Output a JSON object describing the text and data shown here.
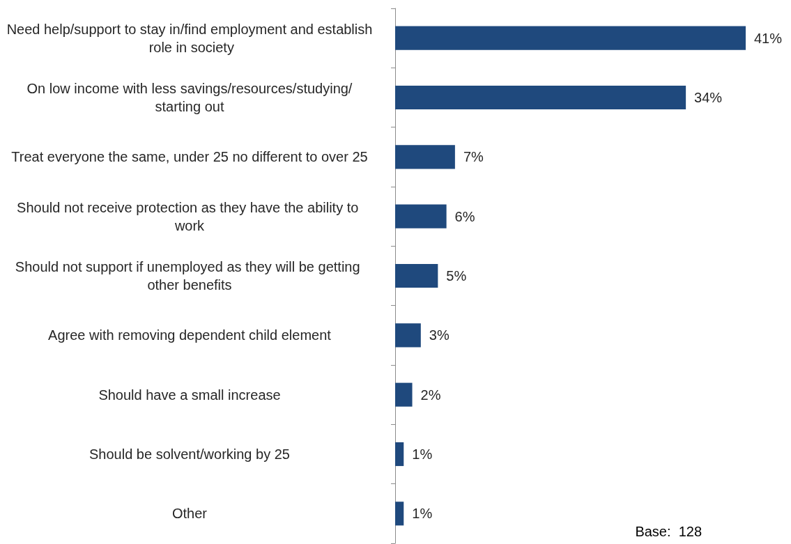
{
  "chart_data": {
    "type": "bar",
    "orientation": "horizontal",
    "categories": [
      "Need help/support to stay in/find employment and establish role in society",
      "On low income with less savings/resources/studying/starting out",
      "Treat everyone the same, under 25 no different to over 25",
      "Should not receive protection as they have the ability to work",
      "Should not support if unemployed as they will be getting other benefits",
      "Agree with removing dependent child element",
      "Should have a small increase",
      "Should be solvent/working by 25",
      "Other"
    ],
    "values": [
      41,
      34,
      7,
      6,
      5,
      3,
      2,
      1,
      1
    ],
    "value_labels": [
      "41%",
      "34%",
      "7%",
      "6%",
      "5%",
      "3%",
      "2%",
      "1%",
      "1%"
    ],
    "color": "#1f497d",
    "annotations": [
      "Base:  128"
    ]
  }
}
